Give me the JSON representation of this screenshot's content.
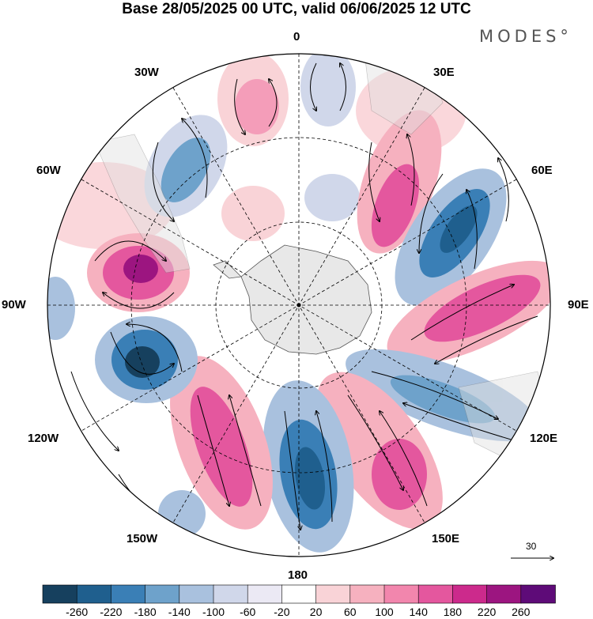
{
  "title": "Base 28/05/2025 00 UTC, valid 06/06/2025 12 UTC",
  "brand": "MODES°",
  "longitude_labels": [
    "0",
    "30E",
    "60E",
    "90E",
    "120E",
    "150E",
    "180",
    "150W",
    "120W",
    "90W",
    "60W",
    "30W"
  ],
  "reference_vector": {
    "value": "30"
  },
  "colorbar": {
    "tick_labels": [
      "-260",
      "-220",
      "-180",
      "-140",
      "-100",
      "-60",
      "-20",
      "20",
      "60",
      "100",
      "140",
      "180",
      "220",
      "260"
    ],
    "colors": [
      "#16405e",
      "#1f5f8e",
      "#3a7fb6",
      "#6ea2cb",
      "#a9c1de",
      "#d0d7ea",
      "#ebe9f4",
      "#ffffff",
      "#f9d3d7",
      "#f6b1bf",
      "#f286ad",
      "#e4579e",
      "#cc2a8c",
      "#9c1580",
      "#5e0b78"
    ]
  },
  "features": [
    "polar-stereographic projection",
    "shaded anomaly field",
    "wind vectors",
    "coastlines",
    "graticule"
  ],
  "colors": {
    "land": "#e8e8e8",
    "graticule": "#000000"
  }
}
